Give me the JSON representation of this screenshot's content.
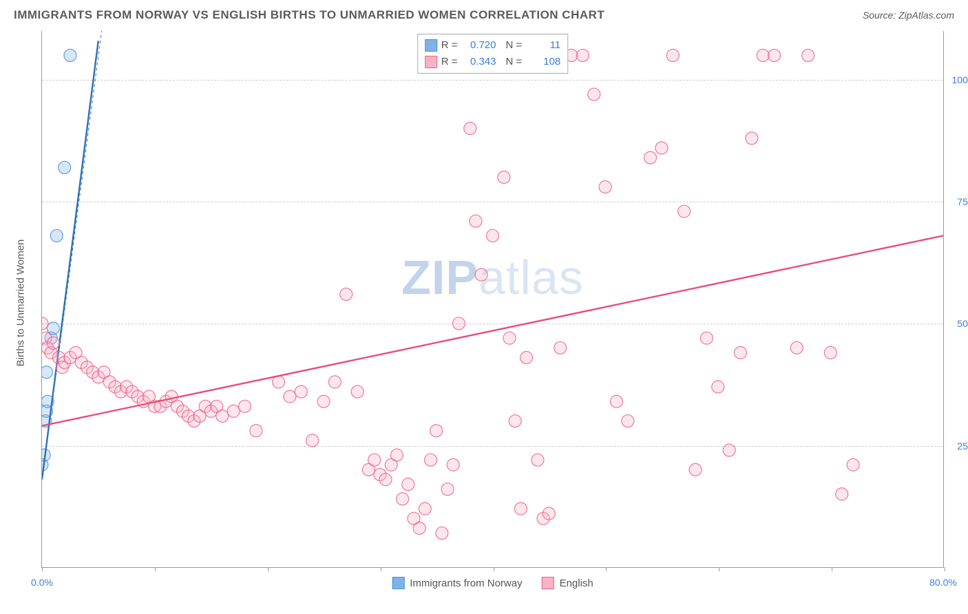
{
  "header": {
    "title": "IMMIGRANTS FROM NORWAY VS ENGLISH BIRTHS TO UNMARRIED WOMEN CORRELATION CHART",
    "source": "Source: ZipAtlas.com"
  },
  "watermark": {
    "part1": "ZIP",
    "part2": "atlas"
  },
  "chart": {
    "type": "scatter",
    "xlim": [
      0,
      80
    ],
    "ylim": [
      0,
      110
    ],
    "xticks": [
      0,
      10,
      20,
      30,
      40,
      50,
      60,
      70,
      80
    ],
    "xtick_labels_show": [
      "0.0%",
      "80.0%"
    ],
    "yticks": [
      25,
      50,
      75,
      100
    ],
    "ytick_labels": [
      "25.0%",
      "50.0%",
      "75.0%",
      "100.0%"
    ],
    "yaxis_label": "Births to Unmarried Women",
    "grid_color": "#cccccc",
    "border_color": "#999999",
    "background_color": "#ffffff",
    "marker_radius": 9,
    "marker_fill_opacity": 0.32,
    "marker_stroke_opacity": 0.85,
    "line_width": 2.4,
    "series": [
      {
        "name": "Immigrants from Norway",
        "color_fill": "#7fb3e8",
        "color_stroke": "#4a90d9",
        "line_color": "#2f6fb8",
        "r_value": "0.720",
        "n_value": "11",
        "trend_line": {
          "x1": 0.0,
          "y1": 18,
          "x2": 5.0,
          "y2": 108
        },
        "trend_dash": {
          "x1": 0.0,
          "y1": 18,
          "x2": 5.3,
          "y2": 110
        },
        "points": [
          [
            0.0,
            21
          ],
          [
            0.2,
            23
          ],
          [
            0.3,
            30
          ],
          [
            0.4,
            32
          ],
          [
            0.5,
            34
          ],
          [
            0.4,
            40
          ],
          [
            0.8,
            47
          ],
          [
            1.0,
            49
          ],
          [
            1.3,
            68
          ],
          [
            2.0,
            82
          ],
          [
            2.5,
            105
          ]
        ]
      },
      {
        "name": "English",
        "color_fill": "#f8b3c4",
        "color_stroke": "#ed5e8a",
        "line_color": "#e84c7d",
        "r_value": "0.343",
        "n_value": "108",
        "trend_line": {
          "x1": 0.0,
          "y1": 29,
          "x2": 80.0,
          "y2": 68
        },
        "points": [
          [
            0.0,
            50
          ],
          [
            0.3,
            47
          ],
          [
            0.5,
            45
          ],
          [
            0.8,
            44
          ],
          [
            1.0,
            46
          ],
          [
            1.5,
            43
          ],
          [
            1.8,
            41
          ],
          [
            2.0,
            42
          ],
          [
            2.5,
            43
          ],
          [
            3.0,
            44
          ],
          [
            3.5,
            42
          ],
          [
            4.0,
            41
          ],
          [
            4.5,
            40
          ],
          [
            5.0,
            39
          ],
          [
            5.5,
            40
          ],
          [
            6.0,
            38
          ],
          [
            6.5,
            37
          ],
          [
            7.0,
            36
          ],
          [
            7.5,
            37
          ],
          [
            8.0,
            36
          ],
          [
            8.5,
            35
          ],
          [
            9.0,
            34
          ],
          [
            9.5,
            35
          ],
          [
            10.0,
            33
          ],
          [
            10.5,
            33
          ],
          [
            11.0,
            34
          ],
          [
            11.5,
            35
          ],
          [
            12.0,
            33
          ],
          [
            12.5,
            32
          ],
          [
            13.0,
            31
          ],
          [
            13.5,
            30
          ],
          [
            14.0,
            31
          ],
          [
            14.5,
            33
          ],
          [
            15.0,
            32
          ],
          [
            15.5,
            33
          ],
          [
            16.0,
            31
          ],
          [
            17.0,
            32
          ],
          [
            18.0,
            33
          ],
          [
            19.0,
            28
          ],
          [
            21.0,
            38
          ],
          [
            22.0,
            35
          ],
          [
            23.0,
            36
          ],
          [
            24.0,
            26
          ],
          [
            25.0,
            34
          ],
          [
            26.0,
            38
          ],
          [
            27.0,
            56
          ],
          [
            28.0,
            36
          ],
          [
            29.0,
            20
          ],
          [
            29.5,
            22
          ],
          [
            30.0,
            19
          ],
          [
            30.5,
            18
          ],
          [
            31.0,
            21
          ],
          [
            31.5,
            23
          ],
          [
            32.0,
            14
          ],
          [
            32.5,
            17
          ],
          [
            33.0,
            10
          ],
          [
            33.5,
            8
          ],
          [
            34.0,
            12
          ],
          [
            34.5,
            22
          ],
          [
            35.0,
            28
          ],
          [
            35.5,
            7
          ],
          [
            36.0,
            16
          ],
          [
            36.5,
            21
          ],
          [
            37.0,
            50
          ],
          [
            38.0,
            90
          ],
          [
            38.5,
            71
          ],
          [
            39.0,
            60
          ],
          [
            40.0,
            68
          ],
          [
            41.0,
            80
          ],
          [
            41.5,
            47
          ],
          [
            42.0,
            30
          ],
          [
            42.5,
            12
          ],
          [
            43.0,
            43
          ],
          [
            44.0,
            22
          ],
          [
            44.5,
            10
          ],
          [
            45.0,
            11
          ],
          [
            46.0,
            45
          ],
          [
            47.0,
            105
          ],
          [
            48.0,
            105
          ],
          [
            49.0,
            97
          ],
          [
            50.0,
            78
          ],
          [
            51.0,
            34
          ],
          [
            52.0,
            30
          ],
          [
            54.0,
            84
          ],
          [
            55.0,
            86
          ],
          [
            56.0,
            105
          ],
          [
            57.0,
            73
          ],
          [
            58.0,
            20
          ],
          [
            59.0,
            47
          ],
          [
            60.0,
            37
          ],
          [
            61.0,
            24
          ],
          [
            62.0,
            44
          ],
          [
            63.0,
            88
          ],
          [
            64.0,
            105
          ],
          [
            65.0,
            105
          ],
          [
            67.0,
            45
          ],
          [
            68.0,
            105
          ],
          [
            70.0,
            44
          ],
          [
            71.0,
            15
          ],
          [
            72.0,
            21
          ]
        ]
      }
    ],
    "legend_top_labels": {
      "r": "R =",
      "n": "N ="
    },
    "legend_bottom": [
      {
        "label": "Immigrants from Norway",
        "fill": "#7fb3e8",
        "stroke": "#4a90d9"
      },
      {
        "label": "English",
        "fill": "#f8b3c4",
        "stroke": "#ed5e8a"
      }
    ]
  }
}
